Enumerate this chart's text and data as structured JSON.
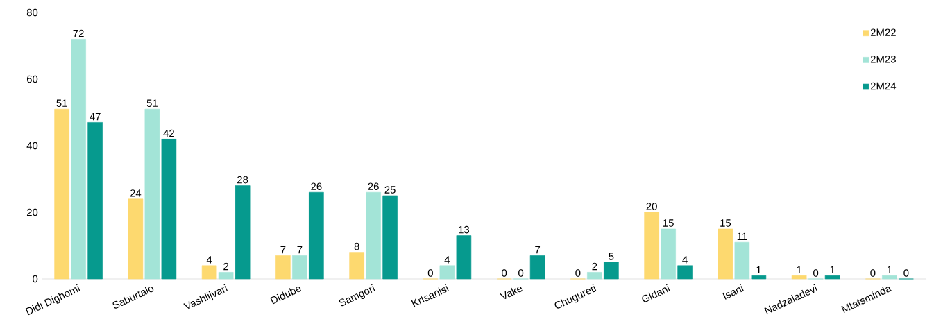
{
  "chart_data": {
    "type": "bar",
    "categories": [
      "Didi Dighomi",
      "Saburtalo",
      "Vashlijvari",
      "Didube",
      "Samgori",
      "Krtsanisi",
      "Vake",
      "Chugureti",
      "Gldani",
      "Isani",
      "Nadzaladevi",
      "Mtatsminda"
    ],
    "series": [
      {
        "name": "2M22",
        "color": "#fdd96f",
        "values": [
          51,
          24,
          4,
          7,
          8,
          0,
          0,
          0,
          20,
          15,
          1,
          0
        ]
      },
      {
        "name": "2M23",
        "color": "#a3e4d7",
        "values": [
          72,
          51,
          2,
          7,
          26,
          4,
          0,
          2,
          15,
          11,
          0,
          1
        ]
      },
      {
        "name": "2M24",
        "color": "#069a8e",
        "values": [
          47,
          42,
          28,
          26,
          25,
          13,
          7,
          5,
          4,
          1,
          1,
          0
        ]
      }
    ],
    "ylim": [
      0,
      80
    ],
    "yticks": [
      0,
      20,
      40,
      60,
      80
    ],
    "grid": false,
    "legend": "top right",
    "data_labels": true
  }
}
